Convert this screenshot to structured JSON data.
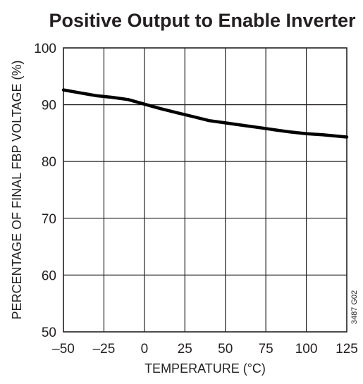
{
  "chart_data": {
    "type": "line",
    "title": "Positive Output to Enable Inverter",
    "xlabel": "TEMPERATURE (°C)",
    "ylabel": "PERCENTAGE OF FINAL FBP VOLTAGE (%)",
    "figure_id": "3487 G02",
    "xlim": [
      -50,
      125
    ],
    "ylim": [
      50,
      100
    ],
    "xticks": [
      -50,
      -25,
      0,
      25,
      50,
      75,
      100,
      125
    ],
    "xtick_labels": [
      "–50",
      "–25",
      "0",
      "25",
      "50",
      "75",
      "100",
      "125"
    ],
    "yticks": [
      50,
      60,
      70,
      80,
      90,
      100
    ],
    "ytick_labels": [
      "50",
      "60",
      "70",
      "80",
      "90",
      "100"
    ],
    "grid": true,
    "series": [
      {
        "x": [
          -50,
          -40,
          -30,
          -20,
          -10,
          0,
          10,
          20,
          30,
          40,
          50,
          60,
          70,
          80,
          90,
          100,
          110,
          125
        ],
        "y": [
          92.6,
          92.1,
          91.6,
          91.3,
          90.9,
          90.1,
          89.3,
          88.6,
          87.9,
          87.2,
          86.8,
          86.4,
          86.0,
          85.6,
          85.2,
          84.9,
          84.7,
          84.3
        ]
      }
    ]
  }
}
